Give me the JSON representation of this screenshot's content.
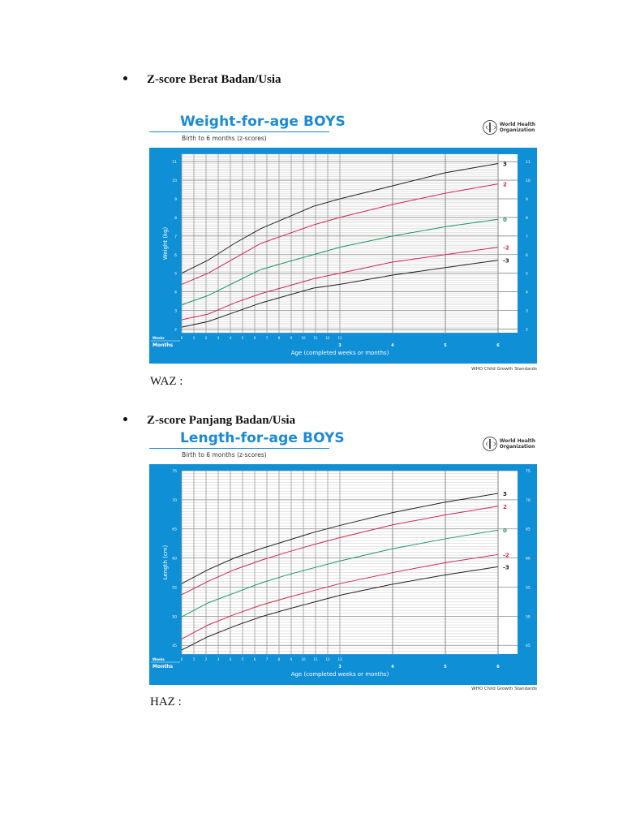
{
  "sections": [
    {
      "heading": "Z-score Berat Badan/Usia",
      "result_label": "WAZ :"
    },
    {
      "heading": "Z-score Panjang Badan/Usia",
      "result_label": "HAZ :"
    }
  ],
  "who_logo": {
    "line1": "World Health",
    "line2": "Organization"
  },
  "colors": {
    "panel_blue": "#0f8fd6",
    "title_blue": "#1a8ad4",
    "z3": "#222222",
    "z2": "#d0284a",
    "z0": "#1a9a5a"
  },
  "chart_data": [
    {
      "type": "line",
      "title": "Weight-for-age BOYS",
      "subtitle": "Birth to 6 months (z-scores)",
      "xlabel": "Age (completed weeks or months)",
      "ylabel": "Weight (kg)",
      "x_weeks_label": "Weeks",
      "x_months_label": "Months",
      "x_week_ticks": [
        "0",
        "1",
        "2",
        "3",
        "4",
        "5",
        "6",
        "7",
        "8",
        "9",
        "10",
        "11",
        "12",
        "13"
      ],
      "x_month_ticks": [
        "3",
        "4",
        "5",
        "6"
      ],
      "y_ticks": [
        "2",
        "3",
        "4",
        "5",
        "6",
        "7",
        "8",
        "9",
        "10",
        "11"
      ],
      "ylim": [
        1.8,
        11.4
      ],
      "grid": true,
      "source": "WHO Child Growth Standards",
      "x_months": [
        0,
        0.5,
        1,
        1.5,
        2,
        2.5,
        3,
        4,
        5,
        6
      ],
      "series": [
        {
          "name": "3",
          "color": "#222222",
          "values": [
            5.0,
            5.7,
            6.6,
            7.4,
            8.0,
            8.6,
            9.0,
            9.7,
            10.4,
            10.9
          ]
        },
        {
          "name": "2",
          "color": "#d0284a",
          "values": [
            4.4,
            5.0,
            5.8,
            6.6,
            7.1,
            7.6,
            8.0,
            8.7,
            9.3,
            9.8
          ]
        },
        {
          "name": "0",
          "color": "#1a9a5a",
          "values": [
            3.3,
            3.8,
            4.5,
            5.2,
            5.6,
            6.0,
            6.4,
            7.0,
            7.5,
            7.9
          ]
        },
        {
          "name": "-2",
          "color": "#d0284a",
          "values": [
            2.5,
            2.8,
            3.4,
            3.9,
            4.3,
            4.7,
            5.0,
            5.6,
            6.0,
            6.4
          ]
        },
        {
          "name": "-3",
          "color": "#222222",
          "values": [
            2.1,
            2.4,
            2.9,
            3.4,
            3.8,
            4.2,
            4.4,
            4.9,
            5.3,
            5.7
          ]
        }
      ]
    },
    {
      "type": "line",
      "title": "Length-for-age BOYS",
      "subtitle": "Birth to 6 months (z-scores)",
      "xlabel": "Age (completed weeks or months)",
      "ylabel": "Length (cm)",
      "x_weeks_label": "Weeks",
      "x_months_label": "Months",
      "x_week_ticks": [
        "0",
        "1",
        "2",
        "3",
        "4",
        "5",
        "6",
        "7",
        "8",
        "9",
        "10",
        "11",
        "12",
        "13"
      ],
      "x_month_ticks": [
        "3",
        "4",
        "5",
        "6"
      ],
      "y_ticks": [
        "45",
        "50",
        "55",
        "60",
        "65",
        "70",
        "75"
      ],
      "ylim": [
        43.5,
        75
      ],
      "grid": true,
      "source": "WHO Child Growth Standards",
      "x_months": [
        0,
        0.5,
        1,
        1.5,
        2,
        2.5,
        3,
        4,
        5,
        6
      ],
      "series": [
        {
          "name": "3",
          "color": "#222222",
          "values": [
            55.6,
            58.0,
            60.0,
            61.6,
            63.0,
            64.4,
            65.6,
            67.8,
            69.6,
            71.1
          ]
        },
        {
          "name": "2",
          "color": "#d0284a",
          "values": [
            53.7,
            56.0,
            58.0,
            59.6,
            61.0,
            62.3,
            63.5,
            65.7,
            67.4,
            68.9
          ]
        },
        {
          "name": "0",
          "color": "#1a9a5a",
          "values": [
            49.9,
            52.3,
            54.0,
            55.7,
            57.1,
            58.3,
            59.5,
            61.6,
            63.3,
            64.8
          ]
        },
        {
          "name": "-2",
          "color": "#d0284a",
          "values": [
            46.1,
            48.5,
            50.3,
            51.9,
            53.2,
            54.4,
            55.6,
            57.5,
            59.2,
            60.6
          ]
        },
        {
          "name": "-3",
          "color": "#222222",
          "values": [
            44.2,
            46.5,
            48.3,
            49.9,
            51.2,
            52.4,
            53.6,
            55.5,
            57.1,
            58.5
          ]
        }
      ]
    }
  ]
}
